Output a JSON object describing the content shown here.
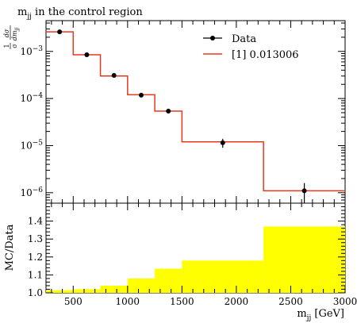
{
  "chart_data": [
    {
      "type": "line",
      "title": "m",
      "title_sub": "jj",
      "title_tail": " in the control region",
      "ylabel_frac_top": "1",
      "ylabel_frac_bottom": "σ",
      "ylabel_dsig_top": "dσ",
      "ylabel_dsig_bottom": "dm",
      "ylabel_dsig_sub": "jj",
      "y_scale": "log",
      "ylim": [
        6e-07,
        0.0045
      ],
      "xlim": [
        250,
        3000
      ],
      "y_tick_labels": [
        {
          "value": 0.001,
          "base": "10",
          "exp": "−3"
        },
        {
          "value": 0.0001,
          "base": "10",
          "exp": "−4"
        },
        {
          "value": 1e-05,
          "base": "10",
          "exp": "−5"
        },
        {
          "value": 1e-06,
          "base": "10",
          "exp": "−6"
        }
      ],
      "legend_position": "top-right",
      "series": [
        {
          "name": "Data",
          "kind": "points",
          "color": "#000000",
          "x": [
            375,
            625,
            875,
            1125,
            1375,
            1875,
            2625
          ],
          "y": [
            0.0026,
            0.00085,
            0.00031,
            0.000118,
            5.4e-05,
            1.15e-05,
            1.1e-06
          ],
          "y_err_low": [
            0.00015,
            4e-05,
            1.5e-05,
            6e-06,
            4e-06,
            2.5e-06,
            5e-07
          ],
          "y_err_high": [
            0.00015,
            4e-05,
            1.5e-05,
            6e-06,
            4e-06,
            2.5e-06,
            5e-07
          ]
        },
        {
          "name": "[1] 0.013006",
          "kind": "histogram",
          "color": "#e8391c",
          "bin_edges": [
            250,
            500,
            750,
            1000,
            1250,
            1500,
            2250,
            3000
          ],
          "y": [
            0.0026,
            0.00085,
            0.0003,
            0.00012,
            5.4e-05,
            1.2e-05,
            1.1e-06
          ]
        }
      ]
    },
    {
      "type": "area",
      "ylabel": "MC/Data",
      "xlabel_main": "m",
      "xlabel_sub": "jj",
      "xlabel_tail": " [GeV]",
      "xlim": [
        250,
        3000
      ],
      "ylim": [
        1.0,
        1.5
      ],
      "x_ticks": [
        500,
        1000,
        1500,
        2000,
        2500,
        3000
      ],
      "x_tick_labels": [
        "500",
        "1000",
        "1500",
        "2000",
        "2500",
        "3000"
      ],
      "y_ticks": [
        1.0,
        1.1,
        1.2,
        1.3,
        1.4
      ],
      "y_tick_labels": [
        "1.0",
        "1.1",
        "1.2",
        "1.3",
        "1.4"
      ],
      "band_color": "#ffff00",
      "bin_edges": [
        250,
        500,
        750,
        1000,
        1250,
        1500,
        2250,
        3000
      ],
      "band_low": [
        1.0,
        1.0,
        1.0,
        1.0,
        1.0,
        1.0,
        1.0
      ],
      "band_high": [
        1.015,
        1.02,
        1.04,
        1.08,
        1.135,
        1.18,
        1.37
      ]
    }
  ]
}
